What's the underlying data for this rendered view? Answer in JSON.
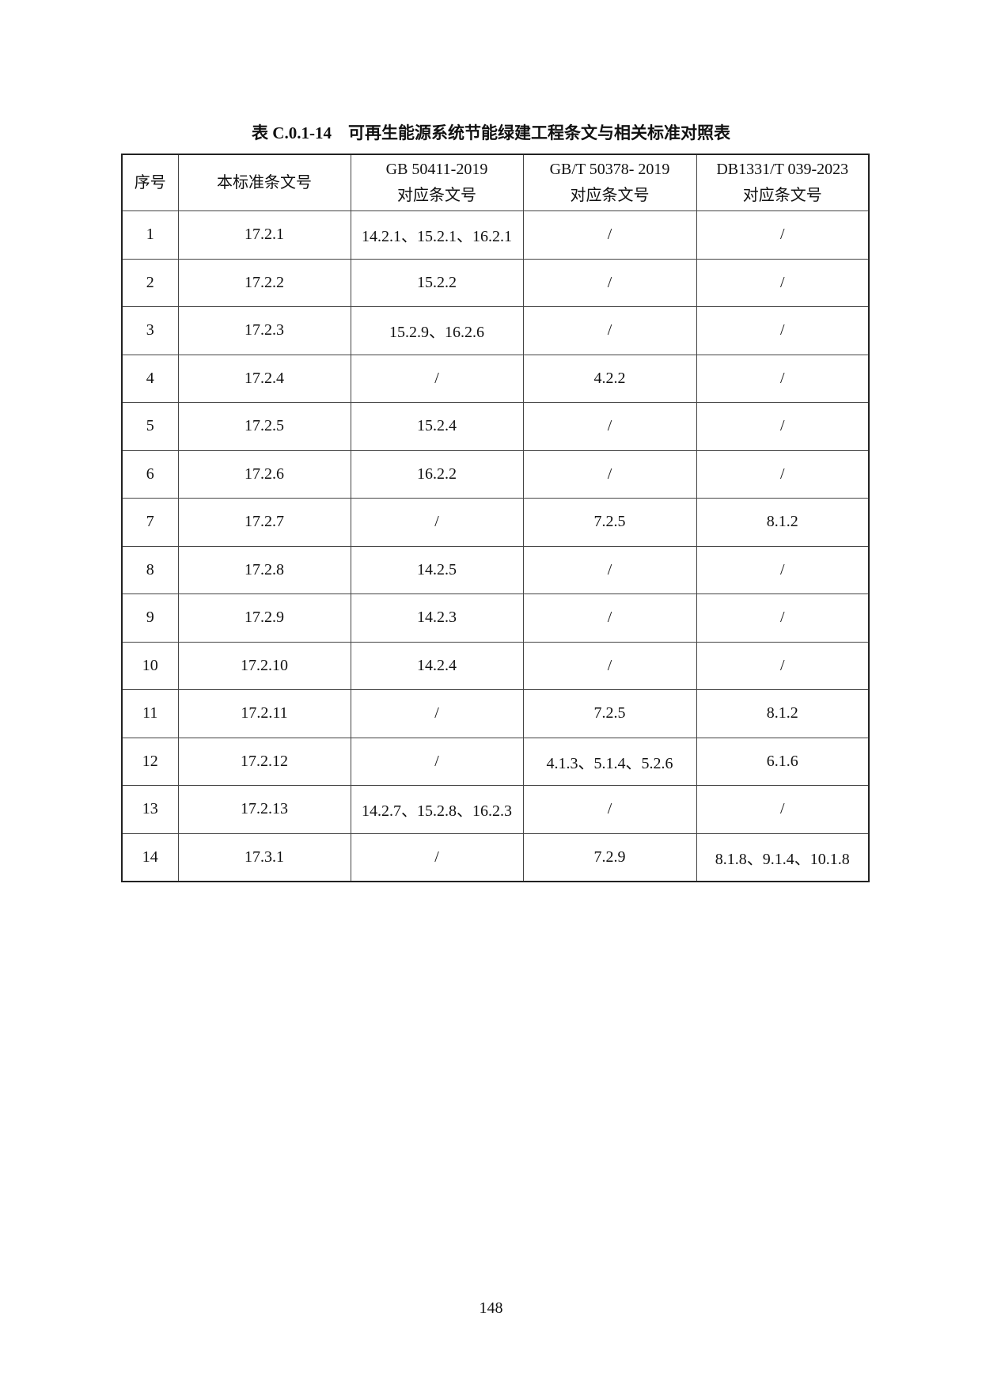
{
  "title": "表 C.0.1-14　可再生能源系统节能绿建工程条文与相关标准对照表",
  "table": {
    "headers": [
      {
        "line1": "序号",
        "line2": ""
      },
      {
        "line1": "本标准条文号",
        "line2": ""
      },
      {
        "line1": "GB 50411-2019",
        "line2": "对应条文号"
      },
      {
        "line1": "GB/T 50378- 2019",
        "line2": "对应条文号"
      },
      {
        "line1": "DB1331/T 039-2023",
        "line2": "对应条文号"
      }
    ],
    "rows": [
      [
        "1",
        "17.2.1",
        "14.2.1、15.2.1、16.2.1",
        "/",
        "/"
      ],
      [
        "2",
        "17.2.2",
        "15.2.2",
        "/",
        "/"
      ],
      [
        "3",
        "17.2.3",
        "15.2.9、16.2.6",
        "/",
        "/"
      ],
      [
        "4",
        "17.2.4",
        "/",
        "4.2.2",
        "/"
      ],
      [
        "5",
        "17.2.5",
        "15.2.4",
        "/",
        "/"
      ],
      [
        "6",
        "17.2.6",
        "16.2.2",
        "/",
        "/"
      ],
      [
        "7",
        "17.2.7",
        "/",
        "7.2.5",
        "8.1.2"
      ],
      [
        "8",
        "17.2.8",
        "14.2.5",
        "/",
        "/"
      ],
      [
        "9",
        "17.2.9",
        "14.2.3",
        "/",
        "/"
      ],
      [
        "10",
        "17.2.10",
        "14.2.4",
        "/",
        "/"
      ],
      [
        "11",
        "17.2.11",
        "/",
        "7.2.5",
        "8.1.2"
      ],
      [
        "12",
        "17.2.12",
        "/",
        "4.1.3、5.1.4、5.2.6",
        "6.1.6"
      ],
      [
        "13",
        "17.2.13",
        "14.2.7、15.2.8、16.2.3",
        "/",
        "/"
      ],
      [
        "14",
        "17.3.1",
        "/",
        "7.2.9",
        "8.1.8、9.1.4、10.1.8"
      ]
    ]
  },
  "page_number": "148"
}
